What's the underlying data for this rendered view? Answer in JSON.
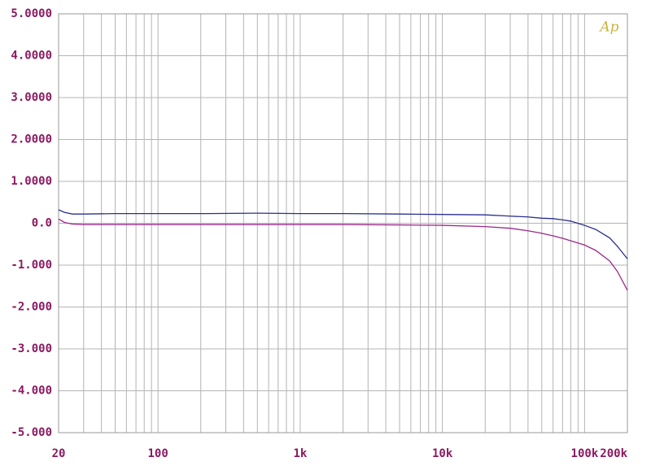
{
  "chart_data": {
    "type": "line",
    "logo": "Ap",
    "xscale": "log",
    "grid": true,
    "xlim": [
      20,
      200000
    ],
    "ylim": [
      -5,
      5
    ],
    "xticks": [
      20,
      100,
      {
        "value": 1000,
        "label": "1k"
      },
      {
        "value": 10000,
        "label": "10k"
      },
      {
        "value": 100000,
        "label": "100k"
      },
      {
        "value": 200000,
        "label": "200k"
      }
    ],
    "x_minor_grid": [
      30,
      40,
      50,
      60,
      70,
      80,
      90,
      200,
      300,
      400,
      500,
      600,
      700,
      800,
      900,
      2000,
      3000,
      4000,
      5000,
      6000,
      7000,
      8000,
      9000,
      20000,
      30000,
      40000,
      50000,
      60000,
      70000,
      80000,
      90000
    ],
    "yticks": [
      {
        "value": 5,
        "label": "5.0000"
      },
      {
        "value": 4,
        "label": "4.0000"
      },
      {
        "value": 3,
        "label": "3.0000"
      },
      {
        "value": 2,
        "label": "2.0000"
      },
      {
        "value": 1,
        "label": "1.0000"
      },
      {
        "value": 0,
        "label": "0.0"
      },
      {
        "value": -1,
        "label": "-1.000"
      },
      {
        "value": -2,
        "label": "-2.000"
      },
      {
        "value": -3,
        "label": "-3.000"
      },
      {
        "value": -4,
        "label": "-4.000"
      },
      {
        "value": -5,
        "label": "-5.000"
      }
    ],
    "x": [
      20,
      22,
      25,
      30,
      50,
      100,
      200,
      500,
      1000,
      2000,
      5000,
      10000,
      20000,
      30000,
      40000,
      50000,
      60000,
      70000,
      80000,
      100000,
      120000,
      150000,
      170000,
      200000
    ],
    "series": [
      {
        "color": "#2a2f8f",
        "values": [
          0.32,
          0.26,
          0.22,
          0.22,
          0.23,
          0.23,
          0.23,
          0.24,
          0.23,
          0.23,
          0.22,
          0.21,
          0.2,
          0.17,
          0.15,
          0.12,
          0.11,
          0.08,
          0.05,
          -0.05,
          -0.15,
          -0.35,
          -0.55,
          -0.85
        ]
      },
      {
        "color": "#9a2a8a",
        "values": [
          0.1,
          0.02,
          -0.02,
          -0.03,
          -0.03,
          -0.03,
          -0.03,
          -0.03,
          -0.03,
          -0.03,
          -0.04,
          -0.05,
          -0.08,
          -0.12,
          -0.18,
          -0.24,
          -0.3,
          -0.36,
          -0.42,
          -0.52,
          -0.65,
          -0.9,
          -1.15,
          -1.6
        ]
      }
    ]
  }
}
